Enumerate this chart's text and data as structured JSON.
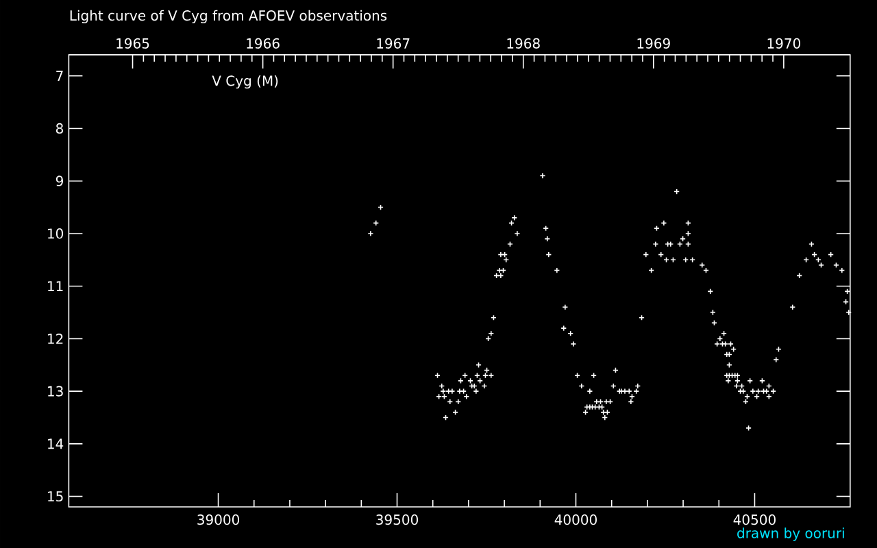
{
  "chart_data": {
    "type": "scatter",
    "title": "Light curve of V Cyg from AFOEV observations",
    "annotations": [
      "V Cyg (M)",
      "drawn by ooruri"
    ],
    "x": [
      39454,
      39441,
      39426,
      39613,
      39625,
      39617,
      39632,
      39629,
      39644,
      39654,
      39636,
      39648,
      39663,
      39671,
      39675,
      39686,
      39678,
      39690,
      39694,
      39705,
      39709,
      39716,
      39721,
      39724,
      39728,
      39732,
      39744,
      39747,
      39751,
      39763,
      39755,
      39763,
      39770,
      39778,
      39790,
      39786,
      39797,
      39790,
      39801,
      39805,
      39816,
      39836,
      39820,
      39828,
      39907,
      39916,
      39920,
      39924,
      39947,
      39970,
      39966,
      39985,
      39993,
      40004,
      40016,
      40039,
      40050,
      40058,
      40069,
      40085,
      40096,
      40031,
      40039,
      40046,
      40054,
      40065,
      40073,
      40027,
      40077,
      40088,
      40081,
      40111,
      40105,
      40122,
      40127,
      40137,
      40149,
      40173,
      40169,
      40157,
      40154,
      40184,
      40211,
      40196,
      40223,
      40226,
      40246,
      40238,
      40253,
      40257,
      40265,
      40272,
      40282,
      40291,
      40299,
      40314,
      40314,
      40314,
      40307,
      40326,
      40353,
      40364,
      40376,
      40383,
      40387,
      40414,
      40403,
      40395,
      40410,
      40418,
      40433,
      40441,
      40422,
      40429,
      40429,
      40422,
      40429,
      40437,
      40445,
      40452,
      40426,
      40452,
      40449,
      40464,
      40460,
      40468,
      40479,
      40475,
      40483,
      40487,
      40495,
      40510,
      40506,
      40521,
      40525,
      40533,
      40540,
      40540,
      40552,
      40567,
      40560,
      40606,
      40625,
      40644,
      40659,
      40667,
      40678,
      40686,
      40713,
      40728,
      40744,
      40759,
      40755,
      40763
    ],
    "values": [
      9.5,
      9.8,
      10.0,
      12.7,
      12.9,
      13.1,
      13.1,
      13.0,
      13.0,
      13.0,
      13.5,
      13.2,
      13.4,
      13.2,
      13.0,
      13.0,
      12.8,
      12.7,
      13.1,
      12.8,
      12.9,
      12.9,
      13.0,
      12.7,
      12.5,
      12.8,
      12.9,
      12.7,
      12.6,
      12.7,
      12.0,
      11.9,
      11.6,
      10.8,
      10.8,
      10.7,
      10.7,
      10.4,
      10.4,
      10.5,
      10.2,
      10.0,
      9.8,
      9.7,
      8.9,
      9.9,
      10.1,
      10.4,
      10.7,
      11.4,
      11.8,
      11.9,
      12.1,
      12.7,
      12.9,
      13.0,
      12.7,
      13.2,
      13.2,
      13.2,
      13.2,
      13.3,
      13.3,
      13.3,
      13.3,
      13.3,
      13.3,
      13.4,
      13.4,
      13.4,
      13.5,
      12.6,
      12.9,
      13.0,
      13.0,
      13.0,
      13.0,
      12.9,
      13.0,
      13.1,
      13.2,
      11.6,
      10.7,
      10.4,
      10.2,
      9.9,
      9.8,
      10.4,
      10.5,
      10.2,
      10.2,
      10.5,
      9.2,
      10.2,
      10.1,
      10.2,
      10.0,
      9.8,
      10.5,
      10.5,
      10.6,
      10.7,
      11.1,
      11.5,
      11.7,
      11.9,
      12.0,
      12.1,
      12.1,
      12.1,
      12.1,
      12.2,
      12.3,
      12.3,
      12.5,
      12.7,
      12.7,
      12.7,
      12.7,
      12.7,
      12.8,
      12.8,
      12.9,
      12.9,
      13.0,
      13.0,
      13.1,
      13.2,
      13.7,
      12.8,
      13.0,
      13.0,
      13.1,
      12.8,
      13.0,
      13.0,
      12.9,
      13.1,
      13.0,
      12.2,
      12.4,
      11.4,
      10.8,
      10.5,
      10.2,
      10.4,
      10.5,
      10.6,
      10.4,
      10.6,
      10.7,
      11.1,
      11.3,
      11.5
    ],
    "color": "#ffffff",
    "marker": "cross",
    "xlim": [
      38582,
      40767
    ],
    "xticks": [
      39000,
      39500,
      40000,
      40500
    ],
    "ylim": [
      15.2,
      6.6
    ],
    "yticks": [
      7,
      8,
      9,
      10,
      11,
      12,
      13,
      14,
      15
    ],
    "x2lim": [
      1964.51,
      1970.51
    ],
    "x2ticks": [
      1965,
      1966,
      1967,
      1968,
      1969,
      1970
    ]
  }
}
